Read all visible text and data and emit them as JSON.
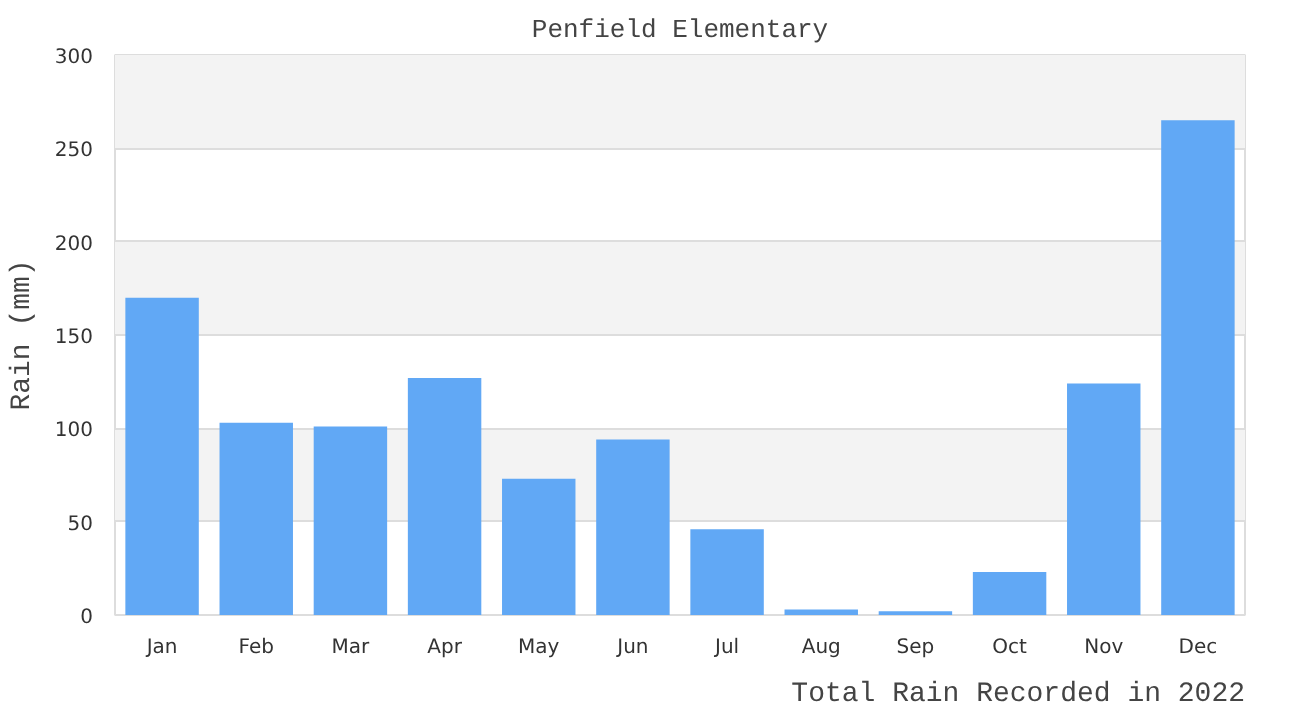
{
  "chart_data": {
    "type": "bar",
    "title": "Penfield Elementary",
    "xlabel": "Total Rain Recorded in 2022",
    "ylabel": "Rain (mm)",
    "categories": [
      "Jan",
      "Feb",
      "Mar",
      "Apr",
      "May",
      "Jun",
      "Jul",
      "Aug",
      "Sep",
      "Oct",
      "Nov",
      "Dec"
    ],
    "values": [
      170,
      103,
      101,
      127,
      73,
      94,
      46,
      3,
      2,
      23,
      124,
      265
    ],
    "color": "#61a8f5",
    "ylim": [
      0,
      300
    ],
    "yticks": [
      0,
      50,
      100,
      150,
      200,
      250,
      300
    ],
    "grid": "y"
  }
}
